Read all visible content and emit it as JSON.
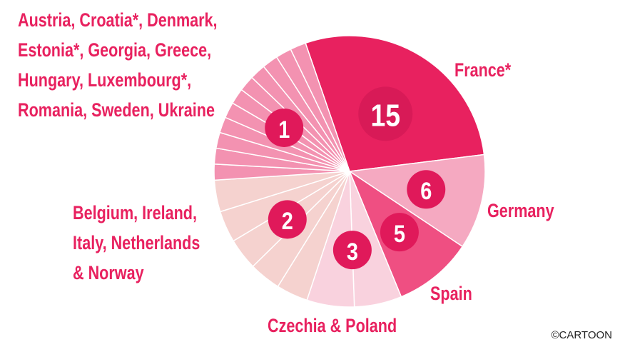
{
  "chart_data": {
    "type": "pie",
    "groups": [
      {
        "label": [
          "France*"
        ],
        "value": 15,
        "count": 1,
        "color": "#e8215f"
      },
      {
        "label": [
          "Germany"
        ],
        "value": 6,
        "count": 1,
        "color": "#f5a9c1"
      },
      {
        "label": [
          "Spain"
        ],
        "value": 5,
        "count": 1,
        "color": "#ef4f82"
      },
      {
        "label": [
          "Czechia & Poland"
        ],
        "value": 3,
        "count": 2,
        "color": "#f9d2de"
      },
      {
        "label": [
          "Belgium, Ireland,",
          "Italy, Netherlands",
          "& Norway"
        ],
        "value": 2,
        "count": 5,
        "color": "#f5d2cf"
      },
      {
        "label": [
          "Austria, Croatia*, Denmark,",
          "Estonia*, Georgia, Greece,",
          "Hungary, Luxembourg*,",
          "Romania, Sweden, Ukraine"
        ],
        "value": 1,
        "count": 11,
        "color": "#f392b1"
      }
    ],
    "credit": "©CARTOON"
  }
}
